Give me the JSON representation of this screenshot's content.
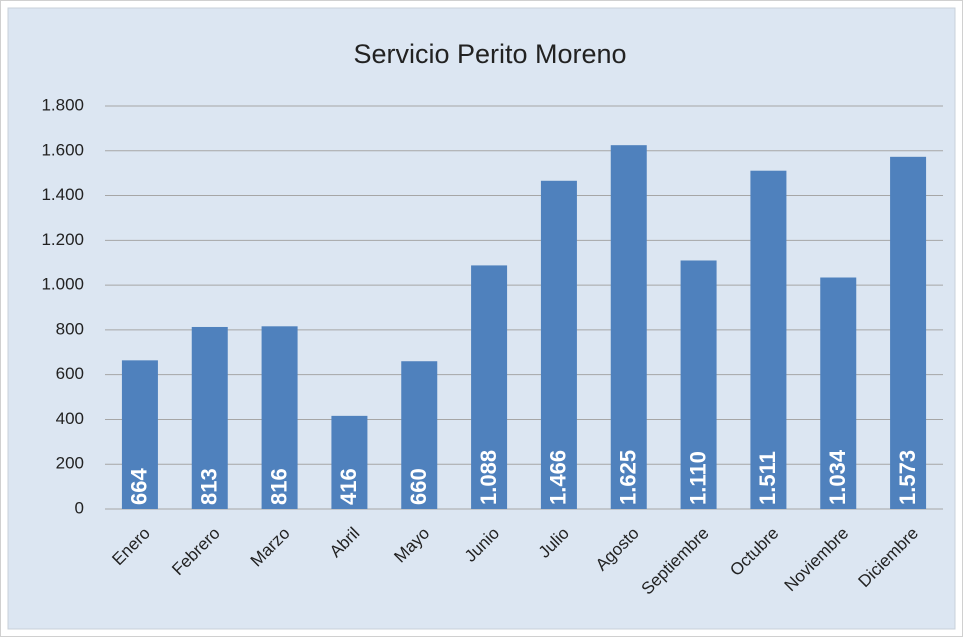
{
  "chart_data": {
    "type": "bar",
    "title": "Servicio Perito Moreno",
    "categories": [
      "Enero",
      "Febrero",
      "Marzo",
      "Abril",
      "Mayo",
      "Junio",
      "Julio",
      "Agosto",
      "Septiembre",
      "Octubre",
      "Noviembre",
      "Diciembre"
    ],
    "values": [
      664,
      813,
      816,
      416,
      660,
      1088,
      1466,
      1625,
      1110,
      1511,
      1034,
      1573
    ],
    "value_labels": [
      "664",
      "813",
      "816",
      "416",
      "660",
      "1.088",
      "1.466",
      "1.625",
      "1.110",
      "1.511",
      "1.034",
      "1.573"
    ],
    "color": "#4f81bd",
    "ylim": [
      0,
      1800
    ],
    "yticks": [
      0,
      200,
      400,
      600,
      800,
      {
        "value": 1000,
        "label": "1.000"
      },
      {
        "value": 1200,
        "label": "1.200"
      },
      {
        "value": 1400,
        "label": "1.400"
      },
      {
        "value": 1600,
        "label": "1.600"
      },
      {
        "value": 1800,
        "label": "1.800"
      }
    ],
    "grid": true
  }
}
